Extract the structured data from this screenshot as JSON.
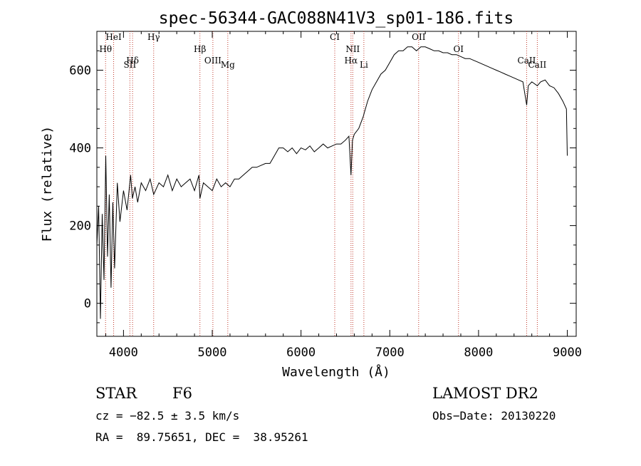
{
  "chart_data": {
    "type": "line",
    "title": "spec-56344-GAC088N41V3_sp01-186.fits",
    "xlabel": "Wavelength (Å)",
    "ylabel": "Flux (relative)",
    "xlim": [
      3700,
      9100
    ],
    "ylim": [
      -85,
      700
    ],
    "xticks": [
      4000,
      5000,
      6000,
      7000,
      8000,
      9000
    ],
    "yticks": [
      0,
      200,
      400,
      600
    ],
    "grid": false,
    "series": [
      {
        "x": [
          3700,
          3720,
          3740,
          3760,
          3780,
          3800,
          3820,
          3840,
          3860,
          3880,
          3900,
          3930,
          3960,
          4000,
          4040,
          4080,
          4100,
          4130,
          4160,
          4200,
          4250,
          4300,
          4340,
          4400,
          4450,
          4500,
          4550,
          4600,
          4650,
          4700,
          4750,
          4800,
          4850,
          4861,
          4900,
          4950,
          5000,
          5050,
          5100,
          5150,
          5200,
          5250,
          5300,
          5350,
          5400,
          5450,
          5500,
          5550,
          5600,
          5650,
          5700,
          5750,
          5800,
          5850,
          5900,
          5950,
          6000,
          6050,
          6100,
          6150,
          6200,
          6250,
          6300,
          6350,
          6400,
          6450,
          6500,
          6540,
          6563,
          6580,
          6600,
          6650,
          6700,
          6750,
          6800,
          6850,
          6900,
          6950,
          7000,
          7050,
          7100,
          7150,
          7200,
          7250,
          7300,
          7350,
          7400,
          7450,
          7500,
          7550,
          7600,
          7650,
          7700,
          7750,
          7800,
          7850,
          7900,
          7950,
          8000,
          8050,
          8100,
          8150,
          8200,
          8250,
          8300,
          8350,
          8400,
          8450,
          8500,
          8542,
          8560,
          8600,
          8662,
          8700,
          8750,
          8800,
          8850,
          8900,
          8950,
          8990,
          9000
        ],
        "y": [
          150,
          250,
          -40,
          230,
          60,
          380,
          120,
          280,
          40,
          260,
          90,
          310,
          210,
          290,
          240,
          330,
          270,
          300,
          260,
          310,
          290,
          320,
          280,
          310,
          300,
          330,
          290,
          320,
          300,
          310,
          320,
          290,
          330,
          270,
          310,
          300,
          290,
          320,
          300,
          310,
          300,
          320,
          320,
          330,
          340,
          350,
          350,
          355,
          360,
          360,
          380,
          400,
          400,
          390,
          400,
          385,
          400,
          395,
          405,
          390,
          400,
          410,
          400,
          405,
          410,
          410,
          420,
          430,
          330,
          420,
          435,
          450,
          480,
          520,
          550,
          570,
          590,
          600,
          620,
          640,
          650,
          650,
          660,
          660,
          650,
          660,
          660,
          655,
          650,
          650,
          645,
          645,
          640,
          640,
          635,
          630,
          630,
          625,
          620,
          615,
          610,
          605,
          600,
          595,
          590,
          585,
          580,
          575,
          570,
          510,
          560,
          570,
          560,
          570,
          575,
          560,
          555,
          540,
          520,
          500,
          380
        ]
      }
    ],
    "lines": [
      {
        "label": "HeI",
        "x": 3889
      },
      {
        "label": "Hθ",
        "x": 3798
      },
      {
        "label": "Hδ",
        "x": 4102
      },
      {
        "label": "SII",
        "x": 4072
      },
      {
        "label": "Hγ",
        "x": 4340
      },
      {
        "label": "Hβ",
        "x": 4861
      },
      {
        "label": "OIII",
        "x": 5007
      },
      {
        "label": "Mg",
        "x": 5175
      },
      {
        "label": "CI",
        "x": 6380
      },
      {
        "label": "NII",
        "x": 6583
      },
      {
        "label": "Hα",
        "x": 6563
      },
      {
        "label": "Li",
        "x": 6708
      },
      {
        "label": "OII",
        "x": 7325
      },
      {
        "label": "OI",
        "x": 7774
      },
      {
        "label": "CaII",
        "x": 8542
      },
      {
        "label": "CaII",
        "x": 8662
      }
    ]
  },
  "info": {
    "obj_class": "STAR",
    "subclass": "F6",
    "survey": "LAMOST DR2",
    "cz": "cz = −82.5 ± 3.5 km/s",
    "obs_date": "Obs−Date: 20130220",
    "coords": "RA =  89.75651, DEC =  38.95261"
  }
}
